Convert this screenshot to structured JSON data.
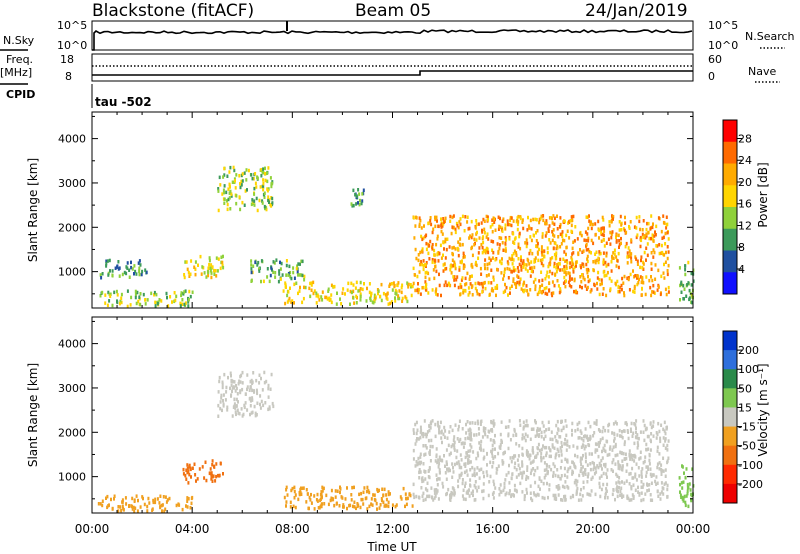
{
  "header": {
    "station": "Blackstone (fitACF)",
    "beam": "Beam 05",
    "date": "24/Jan/2019"
  },
  "top_panels": {
    "nsky_label": "N.Sky",
    "nsearch_label": "N.Search",
    "count_ticks_left": [
      "10^5",
      "10^0"
    ],
    "count_ticks_right": [
      "10^5",
      "10^0"
    ],
    "freq_label": "Freq.",
    "freq_unit": "[MHz]",
    "freq_ticks": [
      "18",
      "8"
    ],
    "nave_label": "Nave",
    "nave_ticks": [
      "60",
      "0"
    ],
    "cpid_label": "CPID",
    "cpid_text": "tau -502"
  },
  "chart_data": [
    {
      "type": "heatmap",
      "title": "",
      "ylabel": "Slant Range [km]",
      "xlabel": "",
      "xlim": [
        0,
        24
      ],
      "ylim": [
        180,
        4600
      ],
      "yticks": [
        1000,
        2000,
        3000,
        4000
      ],
      "colorbar": {
        "label": "Power [dB]",
        "ticks": [
          "28",
          "24",
          "20",
          "16",
          "12",
          "8",
          "4"
        ],
        "colors": [
          "#ff0000",
          "#ff6a00",
          "#ffab00",
          "#ffd500",
          "#8fd13a",
          "#3c9a5a",
          "#2050a0",
          "#1010ff"
        ]
      },
      "echo_regions": [
        {
          "t": [
            0.2,
            4.0
          ],
          "range": [
            250,
            600
          ],
          "power": 14
        },
        {
          "t": [
            0.3,
            2.2
          ],
          "range": [
            900,
            1300
          ],
          "power": 10
        },
        {
          "t": [
            3.6,
            5.2
          ],
          "range": [
            900,
            1400
          ],
          "power": 18
        },
        {
          "t": [
            6.3,
            8.5
          ],
          "range": [
            800,
            1300
          ],
          "power": 12
        },
        {
          "t": [
            7.6,
            12.8
          ],
          "range": [
            300,
            800
          ],
          "power": 18
        },
        {
          "t": [
            5.0,
            7.2
          ],
          "range": [
            2400,
            3400
          ],
          "power": 14
        },
        {
          "t": [
            10.3,
            10.9
          ],
          "range": [
            2500,
            2900
          ],
          "power": 10
        },
        {
          "t": [
            12.8,
            23.0
          ],
          "range": [
            500,
            2300
          ],
          "power": 22
        },
        {
          "t": [
            23.4,
            24.0
          ],
          "range": [
            300,
            1300
          ],
          "power": 12
        }
      ]
    },
    {
      "type": "heatmap",
      "title": "",
      "ylabel": "Slant Range [km]",
      "xlabel": "Time UT",
      "xlim": [
        0,
        24
      ],
      "ylim": [
        180,
        4600
      ],
      "yticks": [
        1000,
        2000,
        3000,
        4000
      ],
      "xticks": [
        "00:00",
        "04:00",
        "08:00",
        "12:00",
        "16:00",
        "20:00",
        "00:00"
      ],
      "colorbar": {
        "label": "Velocity [m s⁻¹]",
        "ticks": [
          "200",
          "100",
          "50",
          "15",
          "-15",
          "-50",
          "-100",
          "-200"
        ],
        "colors": [
          "#0033cc",
          "#2e6fdc",
          "#2a8a4a",
          "#7ec850",
          "#c8c8c0",
          "#f0a020",
          "#f07010",
          "#ff2a00",
          "#ee0000"
        ]
      },
      "echo_regions": [
        {
          "t": [
            0.2,
            4.0
          ],
          "range": [
            250,
            600
          ],
          "velocity": -30
        },
        {
          "t": [
            3.6,
            5.2
          ],
          "range": [
            900,
            1400
          ],
          "velocity": -80
        },
        {
          "t": [
            5.0,
            7.2
          ],
          "range": [
            2400,
            3400
          ],
          "velocity": 0
        },
        {
          "t": [
            7.6,
            12.8
          ],
          "range": [
            300,
            800
          ],
          "velocity": -30
        },
        {
          "t": [
            12.8,
            23.0
          ],
          "range": [
            500,
            2300
          ],
          "velocity": 0
        },
        {
          "t": [
            23.4,
            24.0
          ],
          "range": [
            300,
            1300
          ],
          "velocity": 20
        }
      ]
    }
  ]
}
